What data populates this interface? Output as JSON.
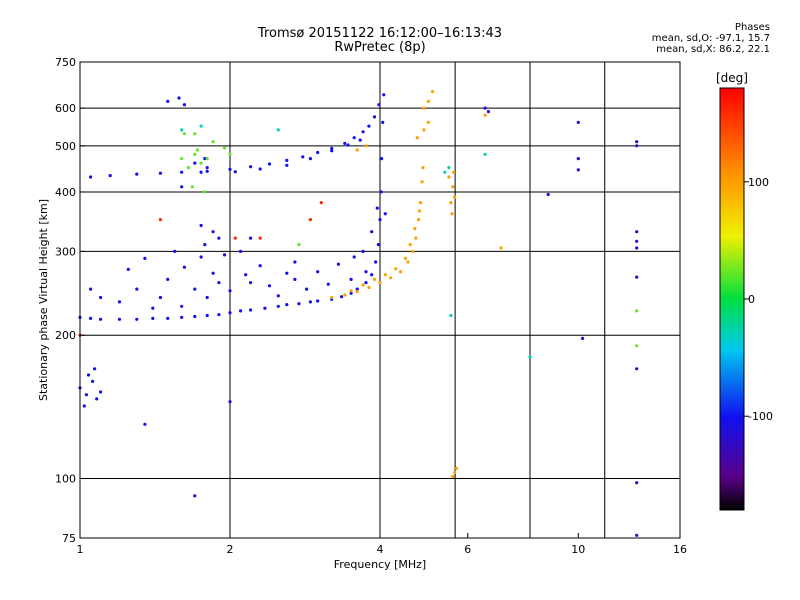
{
  "header": {
    "title_line1": "Tromsø 20151122 16:12:00–16:13:43",
    "title_line2": "RwPretec (8p)"
  },
  "stats": {
    "heading": "Phases",
    "line_o": "mean, sd,O: -97.1, 15.7",
    "line_x": "mean, sd,X:  86.2, 22.1"
  },
  "chart_data": {
    "type": "scatter",
    "x_scale": "log",
    "y_scale": "log",
    "xlabel": "Frequency [MHz]",
    "ylabel": "Stationary phase Virtual Height [km]",
    "xlim": [
      1,
      16
    ],
    "ylim": [
      75,
      750
    ],
    "x_ticks": [
      1,
      2,
      4,
      6,
      10,
      16
    ],
    "x_tick_labels": [
      "1",
      "2",
      "4",
      "6",
      "10",
      "16"
    ],
    "x_grid": [
      2,
      4,
      5.66,
      8,
      11.3
    ],
    "y_ticks": [
      75,
      100,
      200,
      300,
      400,
      500,
      600,
      750
    ],
    "y_tick_labels": [
      "75",
      "100",
      "200",
      "300",
      "400",
      "500",
      "600",
      "750"
    ],
    "y_grid": [
      100,
      200,
      300,
      400,
      500,
      600
    ],
    "colorbar": {
      "label": "[deg]",
      "range": [
        -180,
        180
      ],
      "ticks": [
        100,
        0,
        -100
      ],
      "tick_labels": [
        "100",
        "0",
        "-100"
      ]
    },
    "series": [
      {
        "points": [
          [
            1.0,
            218
          ],
          [
            1.05,
            217
          ],
          [
            1.1,
            216
          ],
          [
            1.2,
            216
          ],
          [
            1.3,
            216
          ],
          [
            1.4,
            217
          ],
          [
            1.5,
            217
          ],
          [
            1.6,
            218
          ],
          [
            1.7,
            219
          ],
          [
            1.8,
            220
          ],
          [
            1.9,
            221
          ],
          [
            2.0,
            223
          ],
          [
            2.1,
            225
          ],
          [
            2.2,
            226
          ],
          [
            2.35,
            228
          ],
          [
            2.5,
            230
          ],
          [
            2.6,
            232
          ],
          [
            2.75,
            233
          ],
          [
            2.9,
            235
          ],
          [
            3.0,
            236
          ],
          [
            3.2,
            238
          ],
          [
            3.35,
            241
          ],
          [
            3.5,
            245
          ],
          [
            3.6,
            250
          ],
          [
            3.75,
            258
          ],
          [
            3.85,
            268
          ],
          [
            3.92,
            285
          ],
          [
            3.97,
            310
          ],
          [
            4.0,
            350
          ],
          [
            4.02,
            400
          ],
          [
            4.03,
            470
          ],
          [
            4.05,
            560
          ],
          [
            4.07,
            640
          ],
          [
            1.05,
            430
          ],
          [
            1.15,
            433
          ],
          [
            1.3,
            436
          ],
          [
            1.45,
            438
          ],
          [
            1.6,
            440
          ],
          [
            1.8,
            442
          ],
          [
            2.0,
            446
          ],
          [
            2.2,
            452
          ],
          [
            2.4,
            458
          ],
          [
            2.6,
            466
          ],
          [
            2.8,
            474
          ],
          [
            3.0,
            484
          ],
          [
            3.2,
            494
          ],
          [
            3.4,
            506
          ],
          [
            3.55,
            520
          ],
          [
            3.7,
            535
          ],
          [
            3.8,
            550
          ],
          [
            3.9,
            575
          ],
          [
            3.98,
            610
          ],
          [
            2.05,
            441
          ],
          [
            2.3,
            447
          ],
          [
            2.6,
            455
          ],
          [
            2.9,
            470
          ],
          [
            3.2,
            488
          ],
          [
            3.45,
            502
          ],
          [
            3.65,
            514
          ],
          [
            1.3,
            250
          ],
          [
            1.5,
            262
          ],
          [
            1.62,
            278
          ],
          [
            1.75,
            292
          ],
          [
            1.85,
            270
          ],
          [
            1.9,
            258
          ],
          [
            1.2,
            235
          ],
          [
            1.45,
            240
          ],
          [
            1.7,
            250
          ],
          [
            1.95,
            295
          ],
          [
            2.15,
            268
          ],
          [
            2.4,
            254
          ],
          [
            2.7,
            262
          ],
          [
            3.0,
            272
          ],
          [
            3.3,
            282
          ],
          [
            3.55,
            292
          ],
          [
            3.7,
            300
          ],
          [
            3.85,
            330
          ],
          [
            3.95,
            370
          ],
          [
            4.1,
            360
          ],
          [
            1.6,
            230
          ],
          [
            1.8,
            240
          ],
          [
            2.0,
            248
          ],
          [
            2.2,
            258
          ],
          [
            1.4,
            228
          ],
          [
            2.5,
            242
          ],
          [
            2.85,
            250
          ],
          [
            3.15,
            256
          ],
          [
            3.5,
            262
          ],
          [
            3.75,
            272
          ],
          [
            1.1,
            240
          ],
          [
            1.05,
            250
          ],
          [
            1.25,
            275
          ],
          [
            1.55,
            300
          ],
          [
            1.78,
            310
          ],
          [
            1.9,
            320
          ],
          [
            2.1,
            300
          ],
          [
            2.3,
            280
          ],
          [
            2.6,
            270
          ],
          [
            1.35,
            290
          ],
          [
            1.75,
            340
          ],
          [
            1.85,
            330
          ],
          [
            2.2,
            320
          ],
          [
            2.7,
            285
          ],
          [
            1.0,
            155
          ],
          [
            1.03,
            150
          ],
          [
            1.06,
            160
          ],
          [
            1.08,
            147
          ],
          [
            1.1,
            152
          ],
          [
            1.04,
            165
          ],
          [
            1.02,
            142
          ],
          [
            1.07,
            170
          ],
          [
            1.5,
            620
          ],
          [
            1.58,
            630
          ],
          [
            1.62,
            610
          ],
          [
            1.75,
            440
          ],
          [
            1.8,
            450
          ],
          [
            1.7,
            460
          ],
          [
            1.78,
            470
          ],
          [
            1.6,
            410
          ],
          [
            2.0,
            145
          ],
          [
            1.35,
            130
          ],
          [
            1.7,
            92
          ]
        ],
        "phase_deg": -100
      },
      {
        "points": [
          [
            3.2,
            240
          ],
          [
            3.4,
            243
          ],
          [
            3.6,
            247
          ],
          [
            3.8,
            252
          ],
          [
            4.0,
            258
          ],
          [
            4.2,
            264
          ],
          [
            4.4,
            272
          ],
          [
            4.55,
            285
          ],
          [
            4.65,
            300
          ],
          [
            4.72,
            320
          ],
          [
            4.78,
            350
          ],
          [
            4.82,
            380
          ],
          [
            4.86,
            420
          ],
          [
            4.88,
            450
          ],
          [
            5.0,
            560
          ],
          [
            4.9,
            540
          ],
          [
            4.75,
            520
          ],
          [
            3.5,
            248
          ],
          [
            3.7,
            255
          ],
          [
            3.9,
            262
          ],
          [
            4.1,
            268
          ],
          [
            4.3,
            276
          ],
          [
            4.5,
            290
          ],
          [
            4.6,
            310
          ],
          [
            4.7,
            335
          ],
          [
            4.8,
            365
          ],
          [
            5.6,
            410
          ],
          [
            5.55,
            380
          ],
          [
            5.62,
            440
          ],
          [
            5.58,
            360
          ],
          [
            5.65,
            390
          ],
          [
            5.5,
            430
          ],
          [
            5.1,
            650
          ],
          [
            4.9,
            600
          ],
          [
            5.0,
            620
          ],
          [
            5.65,
            103
          ],
          [
            5.6,
            101
          ],
          [
            5.7,
            105
          ],
          [
            7.0,
            305
          ],
          [
            6.5,
            580
          ],
          [
            3.6,
            490
          ],
          [
            3.75,
            500
          ]
        ],
        "phase_deg": 100
      },
      {
        "points": [
          [
            1.6,
            470
          ],
          [
            1.7,
            480
          ],
          [
            1.75,
            460
          ],
          [
            1.8,
            470
          ],
          [
            1.65,
            450
          ],
          [
            1.72,
            490
          ],
          [
            1.78,
            400
          ],
          [
            1.68,
            410
          ],
          [
            1.85,
            510
          ],
          [
            1.95,
            495
          ],
          [
            2.0,
            480
          ],
          [
            1.62,
            530
          ],
          [
            2.75,
            310
          ],
          [
            1.7,
            530
          ],
          [
            13.1,
            190
          ],
          [
            13.1,
            225
          ]
        ],
        "phase_deg": 20
      },
      {
        "points": [
          [
            1.75,
            550
          ],
          [
            1.6,
            540
          ],
          [
            2.5,
            540
          ],
          [
            5.4,
            440
          ],
          [
            5.55,
            220
          ],
          [
            5.5,
            450
          ],
          [
            6.5,
            480
          ],
          [
            8.0,
            180
          ]
        ],
        "phase_deg": -30
      },
      {
        "points": [
          [
            6.5,
            600
          ],
          [
            6.6,
            590
          ],
          [
            10.0,
            560
          ],
          [
            10.0,
            470
          ],
          [
            10.0,
            445
          ],
          [
            8.7,
            395
          ],
          [
            13.1,
            510
          ],
          [
            13.1,
            500
          ],
          [
            13.1,
            330
          ],
          [
            13.1,
            315
          ],
          [
            13.1,
            305
          ],
          [
            13.1,
            265
          ],
          [
            13.1,
            170
          ],
          [
            13.1,
            98
          ],
          [
            13.1,
            76
          ],
          [
            10.2,
            197
          ]
        ],
        "phase_deg": -110
      },
      {
        "points": [
          [
            1.45,
            350
          ],
          [
            2.05,
            320
          ],
          [
            2.9,
            350
          ],
          [
            3.05,
            380
          ],
          [
            2.3,
            320
          ],
          [
            1.0,
            200
          ]
        ],
        "phase_deg": 160
      }
    ]
  }
}
